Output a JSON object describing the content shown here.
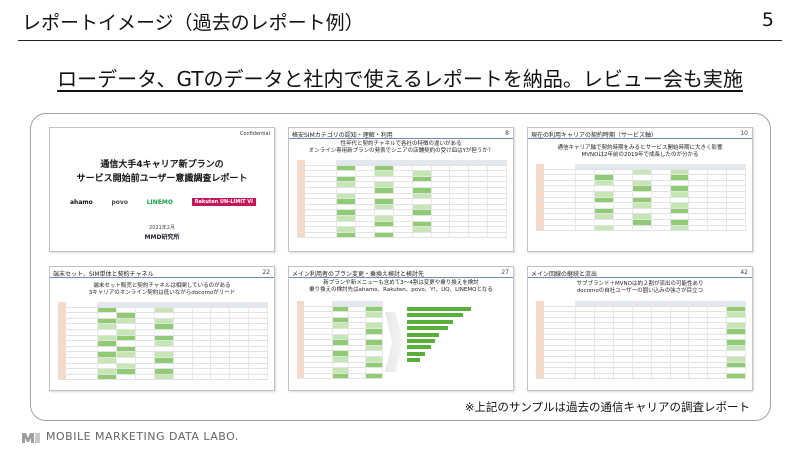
{
  "header": {
    "title": "レポートイメージ（過去のレポート例）",
    "page_number": "5"
  },
  "headline": "ローデータ、GTのデータと社内で使えるレポートを納品。レビュー会も実施",
  "thumbnails": [
    {
      "cover": true,
      "confidential": "Confidential",
      "title_line1": "通信大手4キャリア新プランの",
      "title_line2": "サービス開始前ユーザー意識調査レポート",
      "logos": [
        "ahamo",
        "povo",
        "LINEMO",
        "Rakuten UN-LIMIT VI"
      ],
      "date": "2021年2月",
      "brand": "MMD研究所"
    },
    {
      "head": "格安SIMカテゴリの認知・理解・利用",
      "num": "8",
      "sub1": "性年代と契約チャネルで各社の特徴の違いがある",
      "sub2": "オンライン専用新プランの発表でシニアの店舗契約の受け皿はYが担うか？"
    },
    {
      "head": "現在の利用キャリアの契約時期（サービス軸）",
      "num": "10",
      "sub1": "通信キャリア軸で契約時期をみるとサービス開始時期に大きく影響",
      "sub2": "MVNOは2年前の2019年で成長したのが分かる"
    },
    {
      "head": "端末セット、SIM単体と契約チャネル",
      "num": "22",
      "sub1": "端末セット販売と契約チャネルは相関しているのがある",
      "sub2": "3キャリアのオンライン契約は低いながらdocomoがリード"
    },
    {
      "head": "メイン利用者のプラン変更・乗換え検討と検討先",
      "num": "27",
      "sub1": "新プランや新メニューも含めて3～4割は変更や乗り換えを検討",
      "sub2": "乗り換えの検討先はahamo、Rakuten、povo、Y!、UQ、LINEMOとなる"
    },
    {
      "head": "メイン回線の継続と流出",
      "num": "42",
      "sub1": "サブブランド＋MVNOは約２割が流出の可能性あり",
      "sub2": "docomoの自社ユーザーの囲い込みの強さが目立つ"
    }
  ],
  "caption": "※上記のサンプルは過去の通信キャリアの調査レポート",
  "footer": {
    "company": "MOBILE MARKETING DATA LABO."
  },
  "colors": {
    "accent_green": "#5aae3c",
    "panel_border": "#9aa3ad"
  }
}
